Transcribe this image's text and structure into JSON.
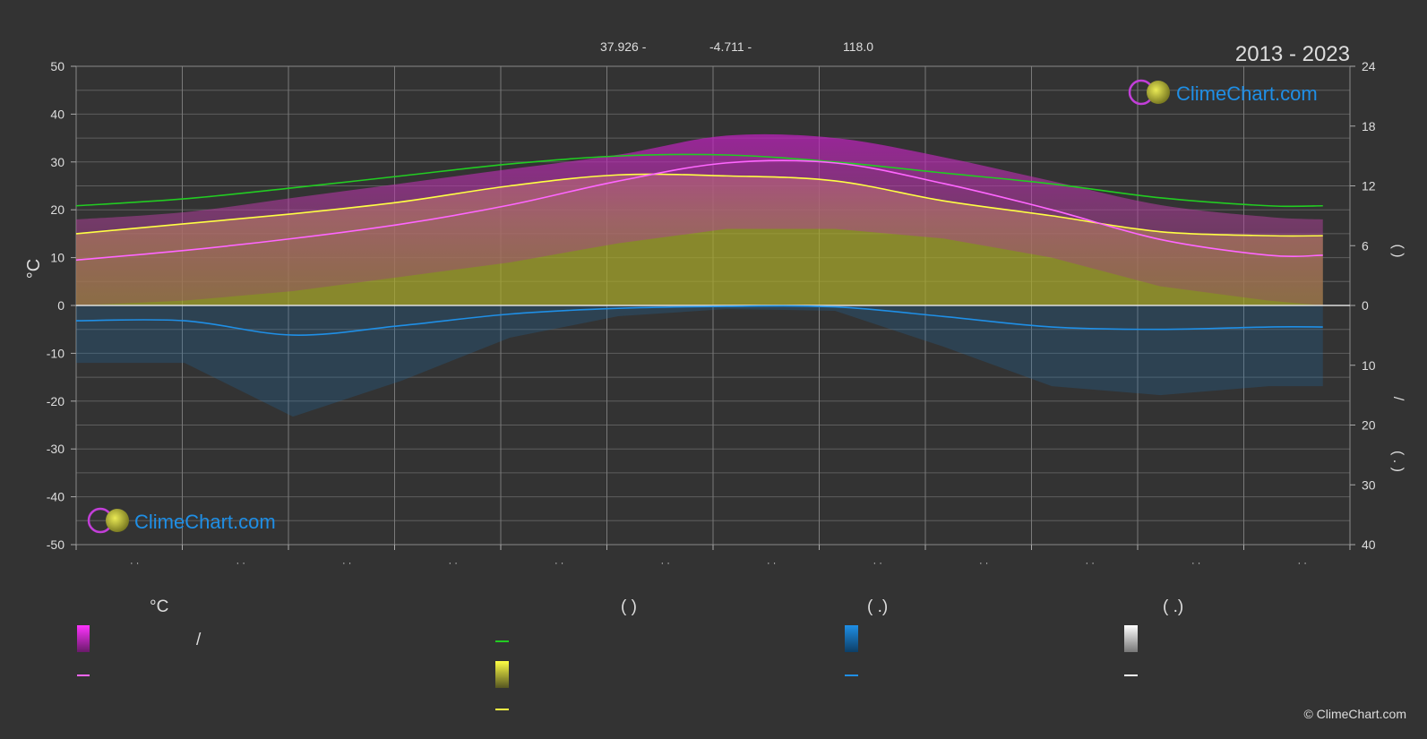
{
  "header": {
    "latitude": "37.926 -",
    "longitude": "-4.711 -",
    "elevation": "118.0",
    "period": "2013 - 2023"
  },
  "brand": {
    "top_logo_text": "ClimeChart.com",
    "bottom_logo_text": "ClimeChart.com",
    "copyright": "© ClimeChart.com"
  },
  "axes": {
    "left_unit": "°C",
    "right_upper_label": "(   )",
    "right_lower_label": "/",
    "right_lower_label2": "( . )",
    "month_labels": [
      "· ·",
      "· ·",
      "· ·",
      "· ·",
      "· ·",
      "· ·",
      "· ·",
      "· ·",
      "· ·",
      "· ·",
      "· ·",
      "· ·"
    ]
  },
  "legend": {
    "col1_heading": "°C",
    "col1_slash": "/",
    "col2_heading": "(          )",
    "col3_heading": "(   .)",
    "col4_heading": "(   .)"
  },
  "colors": {
    "background": "#333333",
    "grid": "#5e5e5e",
    "temperature_range": "#d020d0",
    "mean_max_line": "#ff66ff",
    "daylight_line": "#22cc22",
    "sunshine_fill": "#a9a92a",
    "sunshine_line": "#ffff44",
    "precipitation": "#1a6fb0",
    "precip_line": "#1f8fe6",
    "snow": "#ffffff"
  },
  "chart_data": {
    "type": "area",
    "x": [
      0,
      1,
      2,
      3,
      4,
      5,
      6,
      7,
      8,
      9,
      10,
      11,
      11.5
    ],
    "x_label_note": "months (tick labels rendered as dots)",
    "left_ylim": [
      -50,
      50
    ],
    "left_yticks": [
      50,
      40,
      30,
      20,
      10,
      0,
      -10,
      -20,
      -30,
      -40,
      -50
    ],
    "right_upper_ylim": [
      0,
      24
    ],
    "right_upper_ticks": [
      24,
      18,
      12,
      6,
      0
    ],
    "right_lower_ylim": [
      0,
      40
    ],
    "right_lower_ticks": [
      0,
      10,
      20,
      30,
      40
    ],
    "grid": true,
    "series": [
      {
        "key": "daylight",
        "values": [
          10.0,
          10.7,
          11.8,
          13.0,
          14.2,
          15.0,
          15.1,
          14.4,
          13.3,
          12.2,
          10.8,
          10.0,
          10.0
        ]
      },
      {
        "key": "sunshine",
        "values": [
          7.2,
          8.2,
          9.2,
          10.4,
          12.0,
          13.1,
          13.0,
          12.5,
          10.5,
          9.0,
          7.4,
          7.0,
          7.0
        ]
      },
      {
        "key": "mean_temp",
        "values": [
          9.5,
          11.5,
          14.0,
          17.0,
          21.0,
          26.0,
          29.8,
          29.8,
          25.5,
          20.0,
          13.8,
          10.5,
          10.5
        ]
      },
      {
        "key": "precip_line",
        "values": [
          3.2,
          3.2,
          6.2,
          4.2,
          1.8,
          0.6,
          0.2,
          0.3,
          2.3,
          4.5,
          5.0,
          4.5,
          4.5
        ]
      }
    ],
    "temp_band_top": [
      18,
      19.5,
      22.5,
      25.5,
      28.5,
      31.5,
      35.5,
      35,
      31,
      26,
      21,
      18.5,
      18
    ],
    "temp_band_bottom": [
      0,
      1,
      3,
      6,
      9,
      13,
      16,
      16,
      14,
      10,
      4,
      1,
      0
    ]
  }
}
